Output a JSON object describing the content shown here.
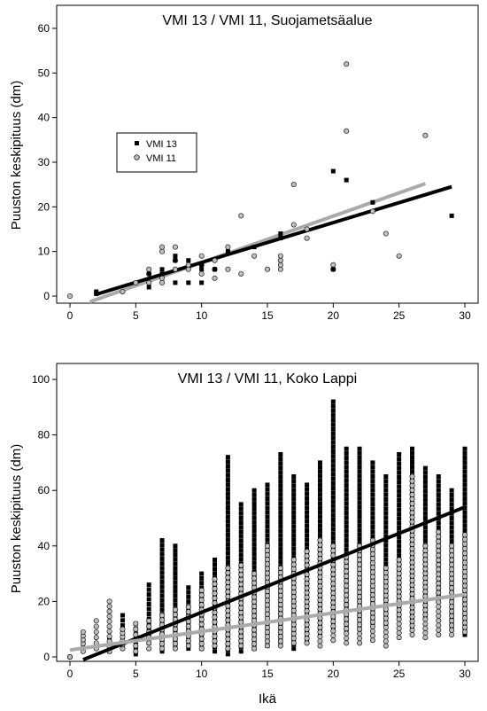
{
  "figure": {
    "xlabel": "Ikä"
  },
  "chart_data": [
    {
      "type": "scatter",
      "title": "VMI 13 / VMI 11, Suojametsäalue",
      "xlabel": "",
      "ylabel": "Puuston keskipituus (dm)",
      "xlim": [
        0,
        30
      ],
      "ylim": [
        0,
        60
      ],
      "xticks": [
        0,
        5,
        10,
        15,
        20,
        25,
        30
      ],
      "yticks": [
        0,
        10,
        20,
        30,
        40,
        50,
        60
      ],
      "grid": false,
      "legend": {
        "position": "upper-left",
        "entries": [
          "VMI 13",
          "VMI 11"
        ]
      },
      "series": [
        {
          "name": "VMI 13",
          "marker": "square",
          "color": "#000000",
          "x": [
            2,
            2,
            6,
            6,
            7,
            7,
            8,
            8,
            8,
            9,
            9,
            10,
            10,
            10,
            11,
            12,
            14,
            16,
            16,
            20,
            20,
            21,
            23,
            29
          ],
          "y": [
            1,
            0.5,
            2,
            5,
            5,
            6,
            3,
            8,
            9,
            3,
            8,
            3,
            6,
            7,
            6,
            10,
            11,
            13,
            14,
            6,
            28,
            26,
            21,
            18
          ]
        },
        {
          "name": "VMI 11",
          "marker": "circle",
          "color": "#bdbdbd",
          "x": [
            0,
            4,
            5,
            6,
            6,
            6,
            7,
            7,
            7,
            7,
            8,
            8,
            8,
            9,
            9,
            10,
            10,
            10,
            11,
            11,
            11,
            12,
            12,
            13,
            13,
            14,
            15,
            16,
            16,
            16,
            16,
            17,
            17,
            18,
            18,
            20,
            20,
            21,
            21,
            23,
            24,
            25,
            27
          ],
          "y": [
            0,
            1,
            3,
            3,
            5,
            6,
            3,
            4,
            10,
            11,
            6,
            8,
            11,
            6,
            7,
            5,
            7,
            9,
            4,
            6,
            8,
            6,
            11,
            5,
            18,
            9,
            6,
            6,
            7,
            8,
            9,
            16,
            25,
            13,
            15,
            6,
            7,
            37,
            52,
            19,
            14,
            9,
            36
          ]
        }
      ],
      "fits": [
        {
          "series": "VMI 13",
          "color": "#000000",
          "x": [
            2,
            29
          ],
          "y": [
            0.4,
            24.5
          ]
        },
        {
          "series": "VMI 11",
          "color": "#aaaaaa",
          "x": [
            1.5,
            27
          ],
          "y": [
            -1.3,
            25.2
          ]
        }
      ]
    },
    {
      "type": "scatter",
      "title": "VMI 13 / VMI 11, Koko Lappi",
      "xlabel": "Ikä",
      "ylabel": "Puuston keskipituus (dm)",
      "xlim": [
        0,
        30
      ],
      "ylim": [
        0,
        100
      ],
      "xticks": [
        0,
        5,
        10,
        15,
        20,
        25,
        30
      ],
      "yticks": [
        0,
        20,
        40,
        60,
        80,
        100
      ],
      "grid": false,
      "legend": null,
      "series": [
        {
          "name": "VMI 13",
          "marker": "square",
          "color": "#000000",
          "columns": [
            {
              "x": 3,
              "y": [
                2,
                6
              ]
            },
            {
              "x": 4,
              "y": [
                4,
                15
              ]
            },
            {
              "x": 5,
              "y": [
                1,
                12
              ]
            },
            {
              "x": 6,
              "y": [
                5,
                17,
                26
              ]
            },
            {
              "x": 7,
              "y": [
                2,
                20,
                40,
                42
              ]
            },
            {
              "x": 8,
              "y": [
                4,
                22,
                40
              ]
            },
            {
              "x": 9,
              "y": [
                3,
                25
              ]
            },
            {
              "x": 10,
              "y": [
                3,
                30
              ]
            },
            {
              "x": 11,
              "y": [
                2,
                35
              ]
            },
            {
              "x": 12,
              "y": [
                1,
                52,
                72
              ]
            },
            {
              "x": 13,
              "y": [
                2,
                55
              ]
            },
            {
              "x": 14,
              "y": [
                3,
                60
              ]
            },
            {
              "x": 15,
              "y": [
                4,
                62
              ]
            },
            {
              "x": 16,
              "y": [
                5,
                62,
                73
              ]
            },
            {
              "x": 17,
              "y": [
                3,
                65
              ]
            },
            {
              "x": 18,
              "y": [
                6,
                62
              ]
            },
            {
              "x": 19,
              "y": [
                8,
                70
              ]
            },
            {
              "x": 20,
              "y": [
                10,
                75,
                92
              ]
            },
            {
              "x": 21,
              "y": [
                9,
                75
              ]
            },
            {
              "x": 22,
              "y": [
                10,
                75
              ]
            },
            {
              "x": 23,
              "y": [
                12,
                70
              ]
            },
            {
              "x": 24,
              "y": [
                12,
                65
              ]
            },
            {
              "x": 25,
              "y": [
                15,
                73
              ]
            },
            {
              "x": 26,
              "y": [
                10,
                75
              ]
            },
            {
              "x": 27,
              "y": [
                14,
                68
              ]
            },
            {
              "x": 28,
              "y": [
                20,
                65
              ]
            },
            {
              "x": 29,
              "y": [
                10,
                60
              ]
            },
            {
              "x": 30,
              "y": [
                8,
                75
              ]
            }
          ]
        },
        {
          "name": "VMI 11",
          "marker": "circle",
          "color": "#bdbdbd",
          "columns": [
            {
              "x": 0,
              "y": [
                0,
                0
              ]
            },
            {
              "x": 1,
              "y": [
                2,
                9
              ]
            },
            {
              "x": 2,
              "y": [
                3,
                13
              ]
            },
            {
              "x": 3,
              "y": [
                2,
                20
              ]
            },
            {
              "x": 4,
              "y": [
                3,
                10
              ]
            },
            {
              "x": 5,
              "y": [
                2,
                12
              ]
            },
            {
              "x": 6,
              "y": [
                3,
                13
              ]
            },
            {
              "x": 7,
              "y": [
                3,
                15
              ]
            },
            {
              "x": 8,
              "y": [
                3,
                17
              ]
            },
            {
              "x": 9,
              "y": [
                4,
                18
              ]
            },
            {
              "x": 10,
              "y": [
                3,
                24
              ]
            },
            {
              "x": 11,
              "y": [
                4,
                28
              ]
            },
            {
              "x": 12,
              "y": [
                3,
                32
              ]
            },
            {
              "x": 13,
              "y": [
                4,
                33
              ]
            },
            {
              "x": 14,
              "y": [
                3,
                30
              ]
            },
            {
              "x": 15,
              "y": [
                4,
                40
              ]
            },
            {
              "x": 16,
              "y": [
                4,
                32
              ]
            },
            {
              "x": 17,
              "y": [
                5,
                35
              ]
            },
            {
              "x": 18,
              "y": [
                5,
                38
              ]
            },
            {
              "x": 19,
              "y": [
                4,
                42
              ]
            },
            {
              "x": 20,
              "y": [
                6,
                40
              ]
            },
            {
              "x": 21,
              "y": [
                5,
                36
              ]
            },
            {
              "x": 22,
              "y": [
                5,
                40
              ]
            },
            {
              "x": 23,
              "y": [
                6,
                42
              ]
            },
            {
              "x": 24,
              "y": [
                4,
                32
              ]
            },
            {
              "x": 25,
              "y": [
                7,
                35
              ]
            },
            {
              "x": 26,
              "y": [
                8,
                65
              ]
            },
            {
              "x": 27,
              "y": [
                7,
                40
              ]
            },
            {
              "x": 28,
              "y": [
                8,
                45
              ]
            },
            {
              "x": 29,
              "y": [
                8,
                40
              ]
            },
            {
              "x": 30,
              "y": [
                9,
                44
              ]
            }
          ]
        }
      ],
      "fits": [
        {
          "series": "VMI 13",
          "color": "#000000",
          "x": [
            1,
            30
          ],
          "y": [
            -1,
            54
          ]
        },
        {
          "series": "VMI 11",
          "color": "#aaaaaa",
          "x": [
            0,
            30
          ],
          "y": [
            2.5,
            22.5
          ]
        }
      ]
    }
  ]
}
